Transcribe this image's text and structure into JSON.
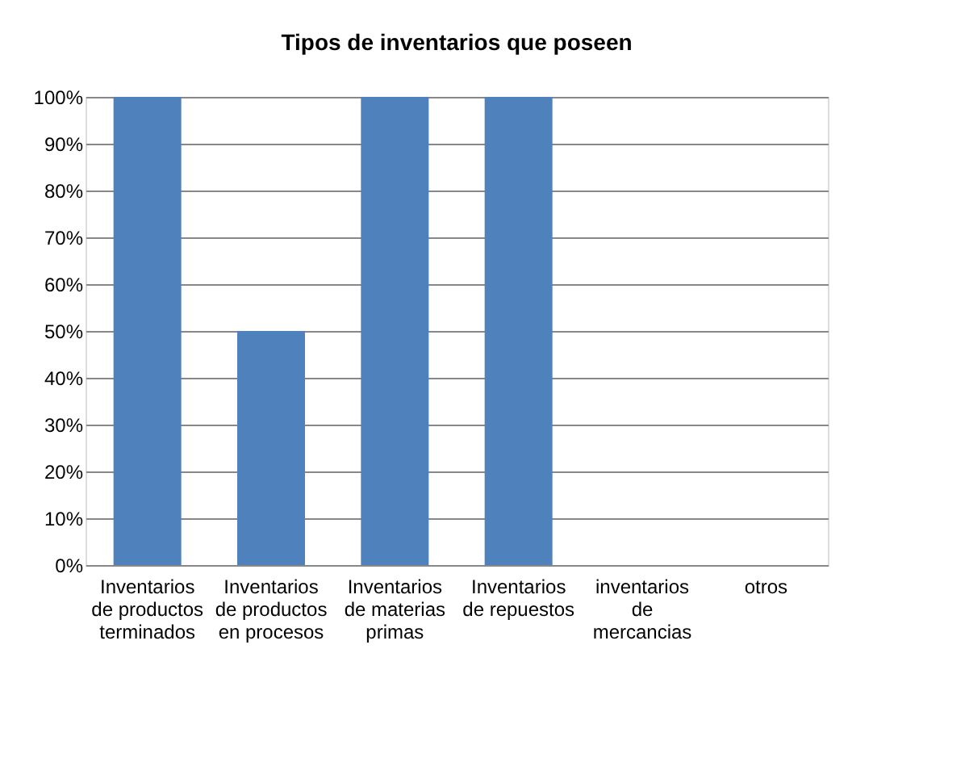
{
  "chart_data": {
    "type": "bar",
    "title": "Tipos de inventarios que poseen",
    "categories": [
      "Inventarios de productos terminados",
      "Inventarios de productos en procesos",
      "Inventarios de materias primas",
      "Inventarios de repuestos",
      "inventarios de mercancias",
      "otros"
    ],
    "values": [
      100,
      50,
      100,
      100,
      0,
      0
    ],
    "color": "#4f81bd",
    "ylim": [
      0,
      100
    ],
    "yticks": [
      {
        "value": 0,
        "label": "0%"
      },
      {
        "value": 10,
        "label": "10%"
      },
      {
        "value": 20,
        "label": "20%"
      },
      {
        "value": 30,
        "label": "30%"
      },
      {
        "value": 40,
        "label": "40%"
      },
      {
        "value": 50,
        "label": "50%"
      },
      {
        "value": 60,
        "label": "60%"
      },
      {
        "value": 70,
        "label": "70%"
      },
      {
        "value": 80,
        "label": "80%"
      },
      {
        "value": 90,
        "label": "90%"
      },
      {
        "value": 100,
        "label": "100%"
      }
    ],
    "grid": "y"
  }
}
